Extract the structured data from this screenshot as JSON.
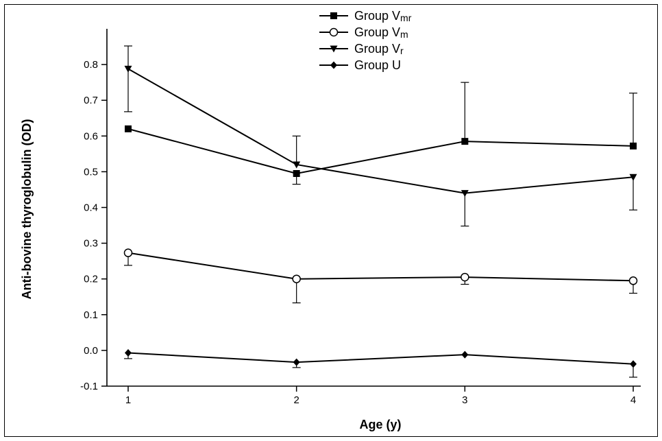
{
  "chart_data": {
    "type": "line",
    "xlabel": "Age (y)",
    "ylabel": "Anti-bovine thyroglobulin (OD)",
    "x": [
      1,
      2,
      3,
      4
    ],
    "xlim": [
      1,
      4
    ],
    "ylim": [
      -0.1,
      0.9
    ],
    "yticks": [
      -0.1,
      0.0,
      0.1,
      0.2,
      0.3,
      0.4,
      0.5,
      0.6,
      0.7,
      0.8
    ],
    "ytick_labels": [
      "-0.1",
      "0.0",
      "0.1",
      "0.2",
      "0.3",
      "0.4",
      "0.5",
      "0.6",
      "0.7",
      "0.8"
    ],
    "xtick_labels": [
      "1",
      "2",
      "3",
      "4"
    ],
    "grid": false,
    "legend_position": "top-center",
    "series": [
      {
        "name": "Group Vmr",
        "name_main": "Group V",
        "name_sub": "mr",
        "marker": "square",
        "values": [
          0.62,
          0.495,
          0.585,
          0.572
        ],
        "err_low": [
          null,
          0.465,
          null,
          null
        ],
        "err_high": [
          null,
          null,
          0.75,
          0.72
        ]
      },
      {
        "name": "Group Vm",
        "name_main": "Group V",
        "name_sub": "m",
        "marker": "circle-open",
        "values": [
          0.273,
          0.2,
          0.205,
          0.195
        ],
        "err_low": [
          0.238,
          0.133,
          0.185,
          0.16
        ],
        "err_high": [
          null,
          null,
          null,
          null
        ]
      },
      {
        "name": "Group Vr",
        "name_main": "Group V",
        "name_sub": "r",
        "marker": "triangle-down",
        "values": [
          0.788,
          0.52,
          0.44,
          0.485
        ],
        "err_low": [
          0.668,
          null,
          0.348,
          0.393
        ],
        "err_high": [
          0.852,
          0.6,
          null,
          null
        ]
      },
      {
        "name": "Group U",
        "name_main": "Group U",
        "name_sub": "",
        "marker": "diamond",
        "values": [
          -0.007,
          -0.033,
          -0.012,
          -0.038
        ],
        "err_low": [
          -0.023,
          -0.048,
          null,
          -0.075
        ],
        "err_high": [
          null,
          null,
          null,
          null
        ]
      }
    ]
  }
}
